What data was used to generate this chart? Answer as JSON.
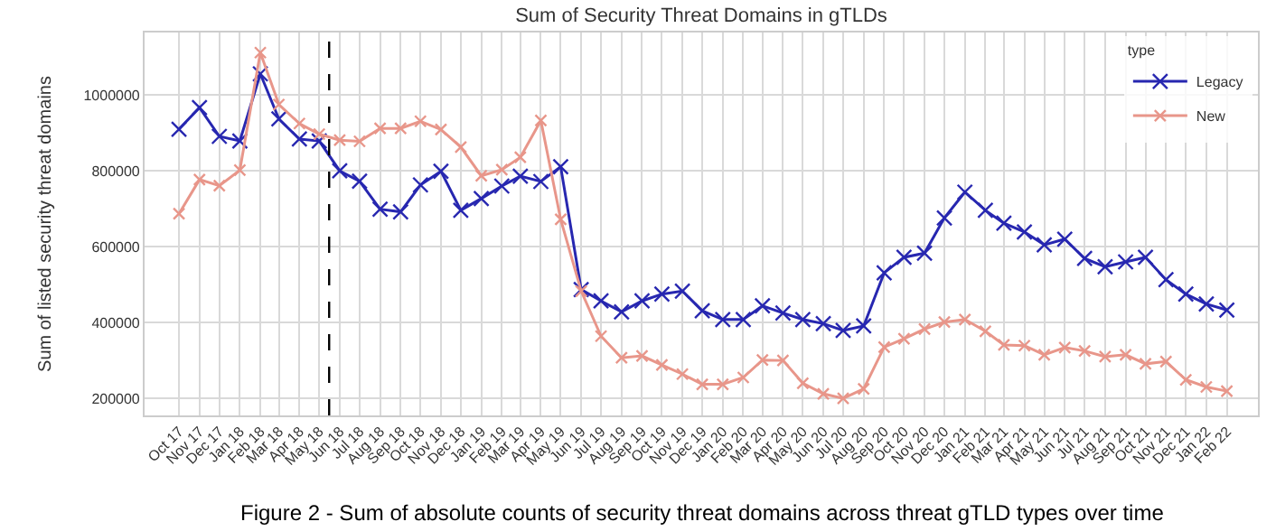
{
  "chart_data": {
    "type": "line",
    "title": "Sum of Security Threat Domains in gTLDs",
    "ylabel": "Sum of listed security threat domains",
    "legend_title": "type",
    "legend": "top right",
    "grid": true,
    "marker": "cross",
    "line_style": "solid",
    "x": [
      "2017-10",
      "2017-11",
      "2017-12",
      "2018-01",
      "2018-02",
      "2018-03",
      "2018-04",
      "2018-05",
      "2018-06",
      "2018-07",
      "2018-08",
      "2018-09",
      "2018-10",
      "2018-11",
      "2018-12",
      "2019-01",
      "2019-02",
      "2019-03",
      "2019-04",
      "2019-05",
      "2019-06",
      "2019-07",
      "2019-08",
      "2019-09",
      "2019-10",
      "2019-11",
      "2019-12",
      "2020-01",
      "2020-02",
      "2020-03",
      "2020-04",
      "2020-05",
      "2020-06",
      "2020-07",
      "2020-08",
      "2020-09",
      "2020-10",
      "2020-11",
      "2020-12",
      "2021-01",
      "2021-02",
      "2021-03",
      "2021-04",
      "2021-05",
      "2021-06",
      "2021-07",
      "2021-08",
      "2021-09",
      "2021-10",
      "2021-11",
      "2021-12",
      "2022-01",
      "2022-02"
    ],
    "xticks": [
      {
        "value": "2017-10",
        "label": "Oct 17"
      },
      {
        "value": "2017-11",
        "label": "Nov 17"
      },
      {
        "value": "2017-12",
        "label": "Dec 17"
      },
      {
        "value": "2018-01",
        "label": "Jan 18"
      },
      {
        "value": "2018-02",
        "label": "Feb 18"
      },
      {
        "value": "2018-03",
        "label": "Mar 18"
      },
      {
        "value": "2018-04",
        "label": "Apr 18"
      },
      {
        "value": "2018-05",
        "label": "May 18"
      },
      {
        "value": "2018-06",
        "label": "Jun 18"
      },
      {
        "value": "2018-07",
        "label": "Jul 18"
      },
      {
        "value": "2018-08",
        "label": "Aug 18"
      },
      {
        "value": "2018-09",
        "label": "Sep 18"
      },
      {
        "value": "2018-10",
        "label": "Oct 18"
      },
      {
        "value": "2018-11",
        "label": "Nov 18"
      },
      {
        "value": "2018-12",
        "label": "Dec 18"
      },
      {
        "value": "2019-01",
        "label": "Jan 19"
      },
      {
        "value": "2019-02",
        "label": "Feb 19"
      },
      {
        "value": "2019-03",
        "label": "Mar 19"
      },
      {
        "value": "2019-04",
        "label": "Apr 19"
      },
      {
        "value": "2019-05",
        "label": "May 19"
      },
      {
        "value": "2019-06",
        "label": "Jun 19"
      },
      {
        "value": "2019-07",
        "label": "Jul 19"
      },
      {
        "value": "2019-08",
        "label": "Aug 19"
      },
      {
        "value": "2019-09",
        "label": "Sep 19"
      },
      {
        "value": "2019-10",
        "label": "Oct 19"
      },
      {
        "value": "2019-11",
        "label": "Nov 19"
      },
      {
        "value": "2019-12",
        "label": "Dec 19"
      },
      {
        "value": "2020-01",
        "label": "Jan 20"
      },
      {
        "value": "2020-02",
        "label": "Feb 20"
      },
      {
        "value": "2020-03",
        "label": "Mar 20"
      },
      {
        "value": "2020-04",
        "label": "Apr 20"
      },
      {
        "value": "2020-05",
        "label": "May 20"
      },
      {
        "value": "2020-06",
        "label": "Jun 20"
      },
      {
        "value": "2020-07",
        "label": "Jul 20"
      },
      {
        "value": "2020-08",
        "label": "Aug 20"
      },
      {
        "value": "2020-09",
        "label": "Sep 20"
      },
      {
        "value": "2020-10",
        "label": "Oct 20"
      },
      {
        "value": "2020-11",
        "label": "Nov 20"
      },
      {
        "value": "2020-12",
        "label": "Dec 20"
      },
      {
        "value": "2021-01",
        "label": "Jan 21"
      },
      {
        "value": "2021-02",
        "label": "Feb 21"
      },
      {
        "value": "2021-03",
        "label": "Mar 21"
      },
      {
        "value": "2021-04",
        "label": "Apr 21"
      },
      {
        "value": "2021-05",
        "label": "May 21"
      },
      {
        "value": "2021-06",
        "label": "Jun 21"
      },
      {
        "value": "2021-07",
        "label": "Jul 21"
      },
      {
        "value": "2021-08",
        "label": "Aug 21"
      },
      {
        "value": "2021-09",
        "label": "Sep 21"
      },
      {
        "value": "2021-10",
        "label": "Oct 21"
      },
      {
        "value": "2021-11",
        "label": "Nov 21"
      },
      {
        "value": "2021-12",
        "label": "Dec 21"
      },
      {
        "value": "2022-01",
        "label": "Jan 22"
      },
      {
        "value": "2022-02",
        "label": "Feb 22"
      }
    ],
    "xlim": [
      "2017-08-10",
      "2022-03-20"
    ],
    "ylim": [
      155000,
      1165000
    ],
    "yticks": [
      200000,
      400000,
      600000,
      800000,
      1000000
    ],
    "series": [
      {
        "name": "Legacy",
        "color": "#2727b0",
        "values": [
          910000,
          967000,
          891000,
          879000,
          1056000,
          937000,
          884000,
          879000,
          800000,
          773000,
          699000,
          692000,
          763000,
          799000,
          696000,
          727000,
          760000,
          786000,
          772000,
          811000,
          487000,
          457000,
          428000,
          457000,
          475000,
          483000,
          431000,
          408000,
          408000,
          444000,
          425000,
          408000,
          397000,
          379000,
          391000,
          531000,
          572000,
          583000,
          676000,
          744000,
          696000,
          662000,
          639000,
          605000,
          620000,
          569000,
          547000,
          560000,
          572000,
          513000,
          475000,
          449000,
          433000
        ]
      },
      {
        "name": "New",
        "color": "#e8968a",
        "values": [
          687000,
          777000,
          761000,
          802000,
          1112000,
          975000,
          925000,
          897000,
          881000,
          878000,
          912000,
          912000,
          931000,
          909000,
          863000,
          787000,
          803000,
          836000,
          933000,
          672000,
          483000,
          364000,
          307000,
          312000,
          288000,
          264000,
          237000,
          237000,
          255000,
          301000,
          300000,
          240000,
          212000,
          200000,
          225000,
          335000,
          357000,
          383000,
          401000,
          408000,
          377000,
          341000,
          339000,
          315000,
          334000,
          325000,
          310000,
          315000,
          291000,
          297000,
          249000,
          230000,
          219000
        ]
      }
    ],
    "ref_lines": [
      {
        "axis": "x",
        "value": "2018-05-16",
        "color": "#000000",
        "line_style": "dashed"
      }
    ],
    "annotations": [
      "Figure 2 - Sum of absolute counts of security threat domains across threat gTLD types over time"
    ]
  }
}
